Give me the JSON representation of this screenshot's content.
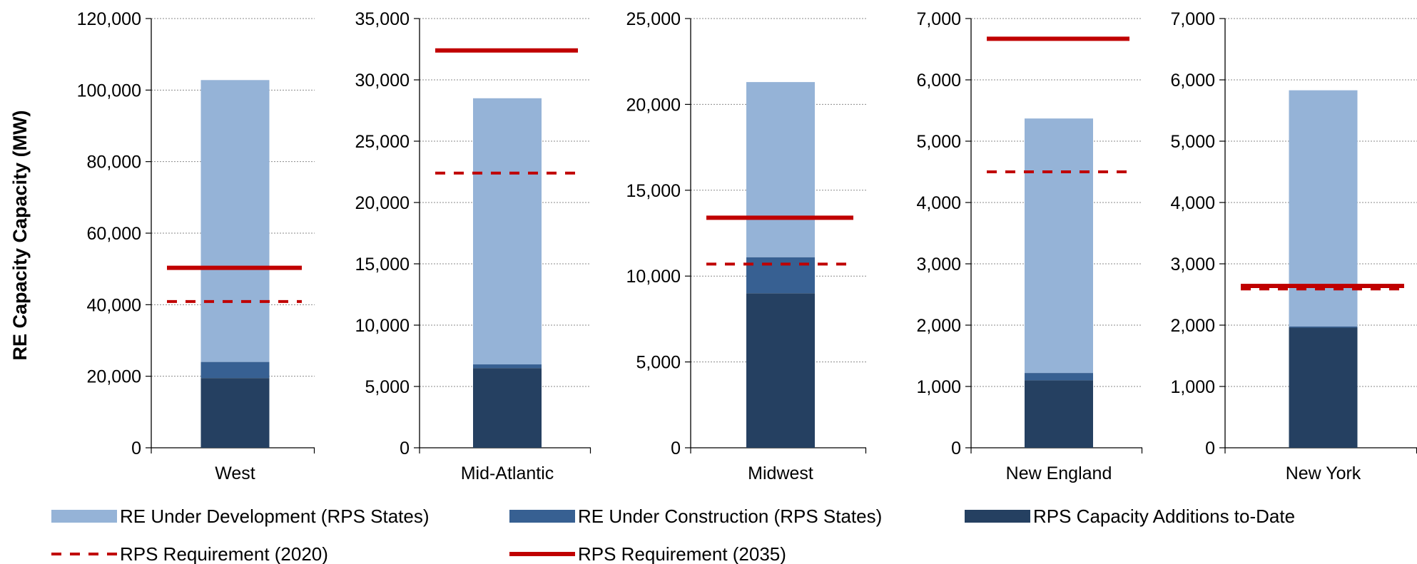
{
  "chart_data": {
    "type": "bar",
    "ylabel": "RE Capacity Capacity (MW)",
    "grid": true,
    "colors": {
      "development": "#95b3d7",
      "construction": "#376092",
      "additions": "#254061",
      "requirement": "#c00000"
    },
    "legend": [
      {
        "key": "development",
        "label": "RE Under Development (RPS States)",
        "style": "box"
      },
      {
        "key": "construction",
        "label": "RE Under Construction (RPS States)",
        "style": "box"
      },
      {
        "key": "additions",
        "label": "RPS Capacity Additions to-Date",
        "style": "box"
      },
      {
        "key": "req2020",
        "label": "RPS Requirement (2020)",
        "style": "dashed"
      },
      {
        "key": "req2035",
        "label": "RPS Requirement (2035)",
        "style": "solid"
      }
    ],
    "panels": [
      {
        "category": "West",
        "ylim": [
          0,
          120000
        ],
        "ticks": [
          "0",
          "20,000",
          "40,000",
          "60,000",
          "80,000",
          "100,000",
          "120,000"
        ],
        "additions": 19500,
        "construction": 4500,
        "development": 78800,
        "req2020": 40900,
        "req2035": 50300
      },
      {
        "category": "Mid-Atlantic",
        "ylim": [
          0,
          35000
        ],
        "ticks": [
          "0",
          "5,000",
          "10,000",
          "15,000",
          "20,000",
          "25,000",
          "30,000",
          "35,000"
        ],
        "additions": 6500,
        "construction": 300,
        "development": 21700,
        "req2020": 22400,
        "req2035": 32400
      },
      {
        "category": "Midwest",
        "ylim": [
          0,
          25000
        ],
        "ticks": [
          "0",
          "5,000",
          "10,000",
          "15,000",
          "20,000",
          "25,000"
        ],
        "additions": 9000,
        "construction": 2100,
        "development": 10200,
        "req2020": 10700,
        "req2035": 13400
      },
      {
        "category": "New England",
        "ylim": [
          0,
          7000
        ],
        "ticks": [
          "0",
          "1,000",
          "2,000",
          "3,000",
          "4,000",
          "5,000",
          "6,000",
          "7,000"
        ],
        "additions": 1100,
        "construction": 120,
        "development": 4150,
        "req2020": 4500,
        "req2035": 6670
      },
      {
        "category": "New York",
        "ylim": [
          0,
          7000
        ],
        "ticks": [
          "0",
          "1,000",
          "2,000",
          "3,000",
          "4,000",
          "5,000",
          "6,000",
          "7,000"
        ],
        "additions": 1960,
        "construction": 20,
        "development": 3850,
        "req2020": 2590,
        "req2035": 2640
      }
    ]
  }
}
